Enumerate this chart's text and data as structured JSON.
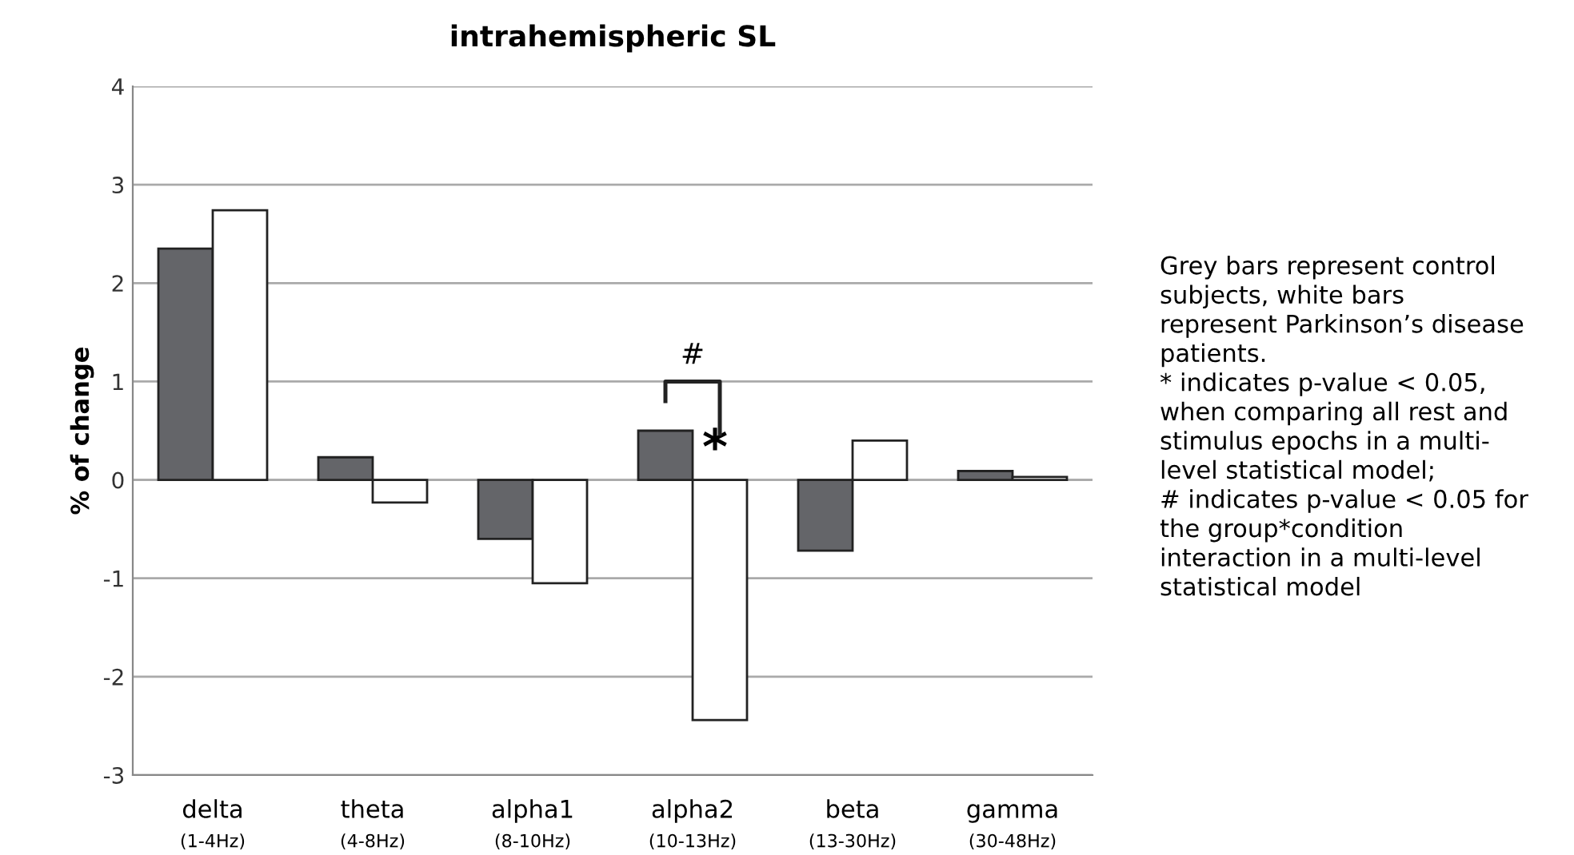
{
  "chart_data": {
    "type": "bar",
    "title": "intrahemispheric SL",
    "ylabel": "% of change",
    "categories": [
      "delta\n(1-4Hz)",
      "theta\n(4-8Hz)",
      "alpha1\n(8-10Hz)",
      "alpha2\n(10-13Hz)",
      "beta\n(13-30Hz)",
      "gamma\n(30-48Hz)"
    ],
    "series": [
      {
        "color": "#646569",
        "values": [
          2.35,
          0.23,
          -0.6,
          0.5,
          -0.72,
          0.09
        ]
      },
      {
        "color": "#ffffff",
        "values": [
          2.74,
          -0.23,
          -1.05,
          -2.44,
          0.4,
          0.03
        ]
      }
    ],
    "ylim": [
      -3,
      4
    ],
    "yticks": [
      -3,
      -2,
      -1,
      0,
      1,
      2,
      3,
      4
    ],
    "grid": "y",
    "annotations": [
      "#",
      {
        "text": "*",
        "x": "alpha2\n(10-13Hz)",
        "y": 0.3
      },
      "Grey bars represent control\nsubjects, white bars\nrepresent Parkinson’s disease\npatients.\n* indicates p-value < 0.05,\nwhen comparing all rest and\nstimulus epochs in a multi-\nlevel statistical model;\n# indicates p-value < 0.05 for\nthe group*condition\ninteraction in a multi-level\nstatistical model"
    ]
  }
}
